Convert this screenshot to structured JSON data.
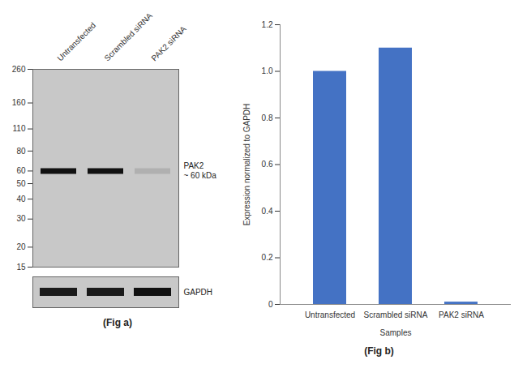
{
  "chart_data": [
    {
      "type": "blot",
      "title": "(Fig a)",
      "categories": [
        "Untransfected",
        "Scrambled siRNA",
        "PAK2 siRNA"
      ],
      "color": "#c8c8c8",
      "log": "y",
      "ylim": [
        15,
        260
      ],
      "yticks": [
        260,
        160,
        110,
        80,
        60,
        50,
        40,
        30,
        20,
        15
      ],
      "bands": [
        {
          "name": "PAK2",
          "label": "~ 60 kDa",
          "values": [
            60,
            60,
            60
          ],
          "colors": [
            "#111111",
            "#111111",
            "#b0b0b0"
          ]
        }
      ],
      "loading_control": {
        "name": "GAPDH",
        "colors": [
          "#1a1a1a",
          "#1a1a1a",
          "#111111"
        ]
      }
    },
    {
      "type": "bar",
      "title": "(Fig b)",
      "categories": [
        "Untransfected",
        "Scrambled siRNA",
        "PAK2 siRNA"
      ],
      "values": [
        1.0,
        1.1,
        0.01
      ],
      "color": "#4472c4",
      "xlabel": "Samples",
      "ylabel": "Expression normalized to GAPDH",
      "ylim": [
        0,
        1.2
      ],
      "yticks": [
        0,
        0.2,
        0.4,
        0.6,
        0.8,
        {
          "value": 1.0,
          "label": "1.0"
        },
        1.2
      ],
      "grid": false
    }
  ]
}
